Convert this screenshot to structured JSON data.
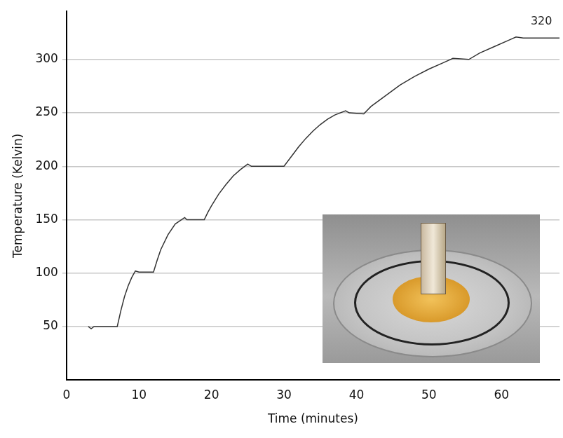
{
  "chart_data": {
    "type": "line",
    "x_label": "Time (minutes)",
    "y_label": "Temperature (Kelvin)",
    "x": [
      3,
      3.4,
      3.8,
      7,
      7.5,
      8,
      8.5,
      9,
      9.5,
      10,
      12,
      12.5,
      13,
      14,
      15,
      16.3,
      16.6,
      19,
      19.5,
      20,
      21,
      22,
      23,
      24,
      25,
      25.5,
      30,
      31,
      32,
      33,
      34,
      35,
      36,
      37,
      38.5,
      39,
      41,
      42,
      44,
      46,
      48,
      50,
      52,
      53.3,
      55.5,
      57,
      59,
      61,
      62,
      63,
      68
    ],
    "values": [
      50,
      48,
      50,
      50,
      65,
      78,
      88,
      96,
      102,
      101,
      101,
      112,
      122,
      136,
      146,
      152,
      150,
      150,
      157,
      163,
      174,
      183,
      191,
      197,
      202,
      200,
      200,
      209,
      218,
      226,
      233,
      239,
      244,
      248,
      252,
      250,
      249,
      256,
      266,
      276,
      284,
      291,
      297,
      301,
      300,
      306,
      312,
      318,
      321,
      320,
      320
    ],
    "color": "#333333",
    "marker": "none",
    "line_style": "solid",
    "xlim": [
      0,
      68
    ],
    "ylim": [
      0,
      345
    ],
    "xticks": [
      0,
      10,
      20,
      30,
      40,
      50,
      60
    ],
    "yticks": [
      50,
      100,
      150,
      200,
      250,
      300
    ],
    "grid": true,
    "annotations": [
      {
        "text": "320",
        "x": 65.5,
        "y": 330
      }
    ]
  }
}
